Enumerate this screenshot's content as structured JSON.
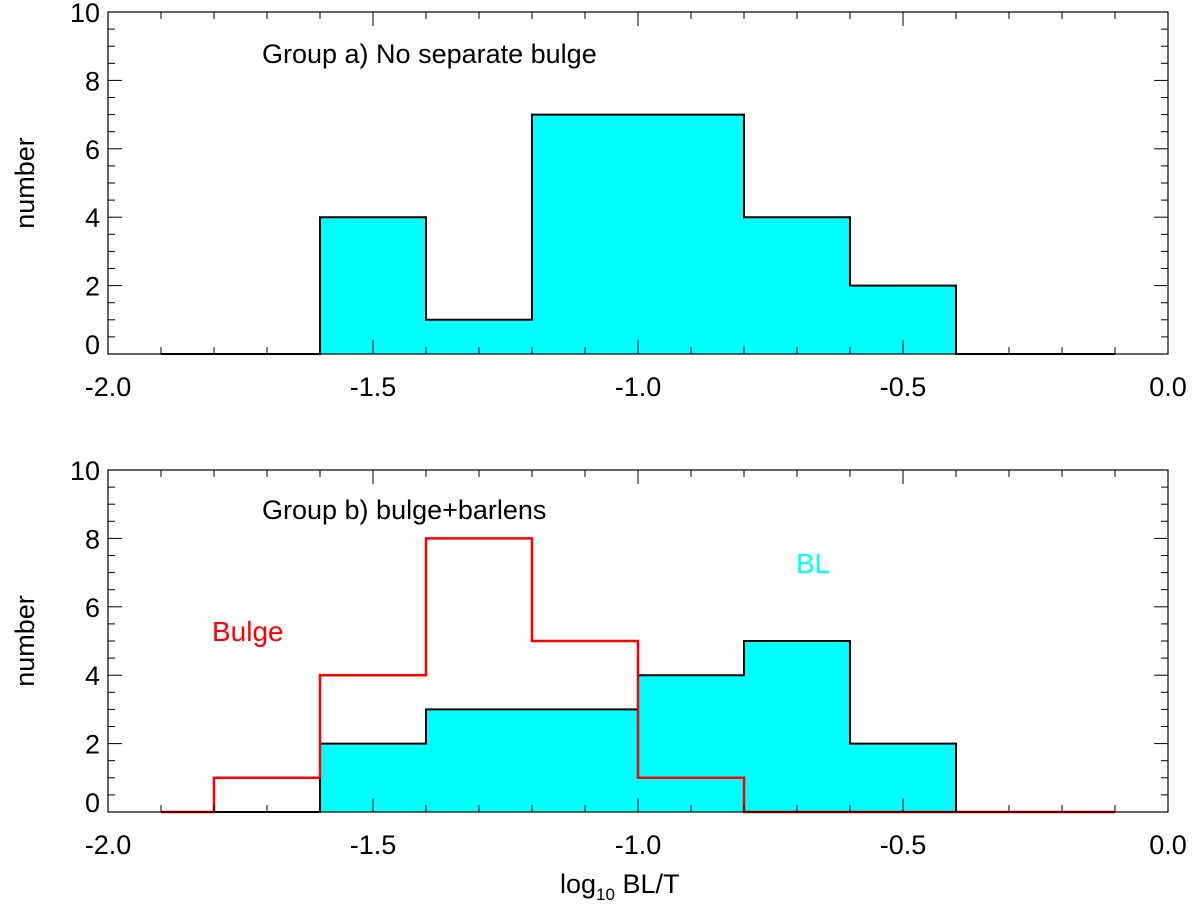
{
  "chart_data": [
    {
      "type": "histogram",
      "panel": "top",
      "title": "Group a) No separate bulge",
      "xlabel": "",
      "ylabel": "number",
      "xlim": [
        -2.0,
        0.0
      ],
      "ylim": [
        0,
        10
      ],
      "xticks": [
        "-2.0",
        "-1.5",
        "-1.0",
        "-0.5",
        "0.0"
      ],
      "yticks": [
        "0",
        "2",
        "4",
        "6",
        "8",
        "10"
      ],
      "bin_edges": [
        -1.9,
        -1.8,
        -1.6,
        -1.4,
        -1.2,
        -1.0,
        -0.8,
        -0.6,
        -0.4,
        -0.2,
        -0.1
      ],
      "series": [
        {
          "name": "BL",
          "style": "filled",
          "color": "#00ffff",
          "edge_color": "#000000",
          "values": [
            0,
            0,
            4,
            1,
            7,
            7,
            4,
            2,
            0,
            0
          ]
        }
      ]
    },
    {
      "type": "histogram",
      "panel": "bottom",
      "title": "Group b) bulge+barlens",
      "xlabel": "log10 BL/T",
      "ylabel": "number",
      "xlim": [
        -2.0,
        0.0
      ],
      "ylim": [
        0,
        10
      ],
      "xticks": [
        "-2.0",
        "-1.5",
        "-1.0",
        "-0.5",
        "0.0"
      ],
      "yticks": [
        "0",
        "2",
        "4",
        "6",
        "8",
        "10"
      ],
      "bin_edges": [
        -1.9,
        -1.8,
        -1.6,
        -1.4,
        -1.2,
        -1.0,
        -0.8,
        -0.6,
        -0.4,
        -0.2,
        -0.1
      ],
      "series": [
        {
          "name": "BL",
          "label": "BL",
          "style": "filled",
          "color": "#00ffff",
          "edge_color": "#000000",
          "values": [
            0,
            0,
            2,
            3,
            3,
            4,
            5,
            2,
            0,
            0
          ]
        },
        {
          "name": "Bulge",
          "label": "Bulge",
          "style": "step",
          "color": "#ff0000",
          "values": [
            0,
            1,
            4,
            8,
            5,
            1,
            0,
            0,
            0,
            0
          ]
        }
      ]
    }
  ],
  "xlabel_parts": {
    "base": "log",
    "subscript": "10",
    "rest": " BL/T"
  }
}
